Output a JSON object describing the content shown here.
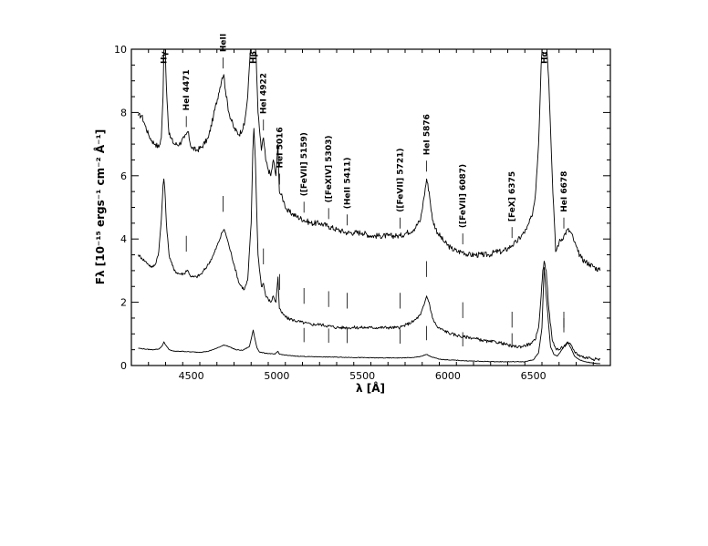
{
  "chart_data": {
    "type": "line",
    "title": "",
    "xlabel": "λ [Å]",
    "ylabel": "Fλ [10⁻¹⁵ ergs⁻¹ cm⁻² Å⁻¹]",
    "xlim": [
      4150,
      6950
    ],
    "ylim": [
      0,
      10
    ],
    "grid": false,
    "xticks": {
      "major": [
        4500,
        5000,
        5500,
        6000,
        6500
      ],
      "labels": [
        "4500",
        "5000",
        "5500",
        "6000",
        "6500"
      ]
    },
    "yticks": {
      "major": [
        0,
        2,
        4,
        6,
        8,
        10
      ],
      "labels": [
        "0",
        "2",
        "4",
        "6",
        "8",
        "10"
      ]
    },
    "series": [
      {
        "x": [
          4190,
          4210,
          4230,
          4250,
          4270,
          4290,
          4310,
          4325,
          4335,
          4340,
          4345,
          4355,
          4370,
          4400,
          4430,
          4460,
          4470,
          4480,
          4500,
          4530,
          4560,
          4600,
          4630,
          4660,
          4680,
          4690,
          4700,
          4720,
          4750,
          4780,
          4810,
          4830,
          4850,
          4860,
          4866,
          4875,
          4890,
          4910,
          4922,
          4935,
          4950,
          4965,
          4980,
          4995,
          5007,
          5015,
          5025,
          5040,
          5060,
          5090,
          5120,
          5160,
          5200,
          5250,
          5303,
          5350,
          5411,
          5450,
          5500,
          5550,
          5600,
          5650,
          5700,
          5721,
          5760,
          5800,
          5840,
          5860,
          5876,
          5890,
          5910,
          5940,
          5980,
          6020,
          6060,
          6087,
          6120,
          6160,
          6200,
          6240,
          6280,
          6320,
          6350,
          6375,
          6400,
          6430,
          6460,
          6490,
          6510,
          6530,
          6545,
          6555,
          6563,
          6575,
          6590,
          6610,
          6630,
          6650,
          6678,
          6700,
          6720,
          6740,
          6760,
          6780,
          6800,
          6830,
          6860,
          6890
        ],
        "values": [
          7.9,
          7.9,
          7.6,
          7.3,
          7.1,
          7.0,
          6.9,
          7.2,
          8.5,
          10.5,
          10.5,
          8.8,
          7.3,
          7.0,
          7.0,
          7.2,
          7.3,
          7.4,
          6.9,
          6.8,
          6.9,
          7.2,
          7.9,
          8.6,
          9.1,
          9.2,
          8.7,
          8.0,
          7.5,
          7.3,
          7.6,
          8.5,
          10.5,
          10.5,
          10.5,
          10.5,
          8.0,
          6.8,
          7.2,
          6.5,
          6.2,
          6.0,
          6.5,
          6.0,
          7.0,
          5.5,
          5.4,
          5.2,
          4.9,
          4.8,
          4.7,
          4.6,
          4.5,
          4.5,
          4.4,
          4.3,
          4.2,
          4.2,
          4.2,
          4.1,
          4.1,
          4.1,
          4.1,
          4.1,
          4.2,
          4.3,
          4.6,
          5.3,
          5.9,
          5.5,
          4.6,
          4.2,
          3.9,
          3.7,
          3.6,
          3.6,
          3.5,
          3.5,
          3.5,
          3.5,
          3.6,
          3.6,
          3.7,
          3.8,
          3.9,
          4.1,
          4.3,
          4.7,
          5.3,
          7.0,
          9.5,
          10.5,
          10.5,
          10.5,
          9.0,
          6.0,
          3.6,
          3.9,
          4.1,
          4.3,
          4.2,
          3.9,
          3.6,
          3.4,
          3.3,
          3.2,
          3.1,
          3.0
        ]
      },
      {
        "x": [
          4190,
          4210,
          4230,
          4250,
          4270,
          4290,
          4310,
          4325,
          4335,
          4340,
          4345,
          4355,
          4370,
          4400,
          4430,
          4460,
          4470,
          4480,
          4500,
          4530,
          4560,
          4600,
          4630,
          4660,
          4680,
          4690,
          4700,
          4720,
          4750,
          4780,
          4810,
          4830,
          4850,
          4860,
          4866,
          4875,
          4890,
          4910,
          4922,
          4935,
          4950,
          4965,
          4980,
          4995,
          5007,
          5015,
          5025,
          5040,
          5060,
          5090,
          5120,
          5160,
          5200,
          5250,
          5303,
          5350,
          5411,
          5450,
          5500,
          5550,
          5600,
          5650,
          5700,
          5721,
          5760,
          5800,
          5840,
          5860,
          5876,
          5890,
          5910,
          5940,
          5980,
          6020,
          6060,
          6087,
          6120,
          6160,
          6200,
          6240,
          6280,
          6320,
          6350,
          6375,
          6400,
          6430,
          6460,
          6490,
          6510,
          6530,
          6545,
          6555,
          6563,
          6575,
          6590,
          6610,
          6630,
          6650,
          6678,
          6700,
          6720,
          6740,
          6760,
          6780,
          6800,
          6830,
          6860,
          6890
        ],
        "values": [
          3.5,
          3.4,
          3.3,
          3.2,
          3.1,
          3.2,
          3.6,
          4.6,
          5.7,
          5.9,
          5.6,
          4.5,
          3.5,
          3.0,
          2.9,
          2.9,
          3.0,
          3.0,
          2.8,
          2.8,
          2.9,
          3.2,
          3.5,
          3.9,
          4.2,
          4.3,
          4.2,
          3.8,
          3.2,
          2.6,
          2.4,
          2.7,
          4.5,
          6.8,
          7.5,
          6.5,
          3.5,
          2.5,
          2.6,
          2.2,
          2.1,
          2.0,
          2.2,
          2.0,
          2.8,
          1.8,
          1.7,
          1.6,
          1.5,
          1.45,
          1.4,
          1.35,
          1.3,
          1.3,
          1.25,
          1.2,
          1.2,
          1.2,
          1.2,
          1.2,
          1.2,
          1.2,
          1.2,
          1.2,
          1.3,
          1.4,
          1.6,
          1.9,
          2.2,
          2.0,
          1.5,
          1.2,
          1.1,
          1.0,
          0.95,
          0.9,
          0.9,
          0.85,
          0.8,
          0.75,
          0.75,
          0.7,
          0.65,
          0.6,
          0.6,
          0.6,
          0.65,
          0.7,
          0.8,
          1.2,
          2.2,
          3.0,
          3.3,
          3.0,
          1.8,
          0.8,
          0.55,
          0.5,
          0.6,
          0.7,
          0.65,
          0.45,
          0.35,
          0.3,
          0.25,
          0.25,
          0.2,
          0.2
        ]
      },
      {
        "x": [
          4190,
          4230,
          4270,
          4310,
          4330,
          4340,
          4350,
          4370,
          4400,
          4450,
          4500,
          4550,
          4600,
          4650,
          4690,
          4720,
          4760,
          4800,
          4840,
          4855,
          4862,
          4870,
          4885,
          4900,
          4950,
          4990,
          5007,
          5015,
          5050,
          5100,
          5200,
          5300,
          5400,
          5500,
          5600,
          5700,
          5800,
          5850,
          5876,
          5900,
          5950,
          6000,
          6100,
          6200,
          6300,
          6400,
          6450,
          6500,
          6530,
          6550,
          6563,
          6575,
          6600,
          6620,
          6640,
          6660,
          6678,
          6700,
          6720,
          6740,
          6770,
          6800,
          6850,
          6890
        ],
        "values": [
          0.55,
          0.52,
          0.5,
          0.52,
          0.62,
          0.75,
          0.65,
          0.5,
          0.45,
          0.45,
          0.43,
          0.42,
          0.45,
          0.55,
          0.65,
          0.6,
          0.5,
          0.48,
          0.6,
          0.95,
          1.12,
          0.9,
          0.55,
          0.42,
          0.38,
          0.36,
          0.45,
          0.36,
          0.33,
          0.3,
          0.28,
          0.27,
          0.26,
          0.25,
          0.24,
          0.24,
          0.25,
          0.3,
          0.35,
          0.28,
          0.2,
          0.18,
          0.15,
          0.13,
          0.12,
          0.12,
          0.12,
          0.18,
          0.4,
          1.2,
          3.1,
          2.2,
          0.6,
          0.35,
          0.3,
          0.45,
          0.6,
          0.75,
          0.55,
          0.3,
          0.18,
          0.12,
          0.08,
          0.05
        ]
      }
    ],
    "annotations": [
      {
        "label": "Hγ",
        "x": 4340
      },
      {
        "label": "HeI 4471",
        "x": 4471
      },
      {
        "label": "HeII",
        "x": 4686
      },
      {
        "label": "Hβ",
        "x": 4861
      },
      {
        "label": "HeI 4922",
        "x": 4922
      },
      {
        "label": "HeI 5016",
        "x": 5016
      },
      {
        "label": "([FeVII] 5159)",
        "x": 5159
      },
      {
        "label": "([FeXIV] 5303)",
        "x": 5303
      },
      {
        "label": "(HeII 5411)",
        "x": 5411
      },
      {
        "label": "([FeVII] 5721)",
        "x": 5721
      },
      {
        "label": "HeI 5876",
        "x": 5876
      },
      {
        "label": "([FeVII] 6087)",
        "x": 6087
      },
      {
        "label": "[FeX] 6375",
        "x": 6375
      },
      {
        "label": "Hα",
        "x": 6563
      },
      {
        "label": "HeI 6678",
        "x": 6678
      }
    ]
  }
}
